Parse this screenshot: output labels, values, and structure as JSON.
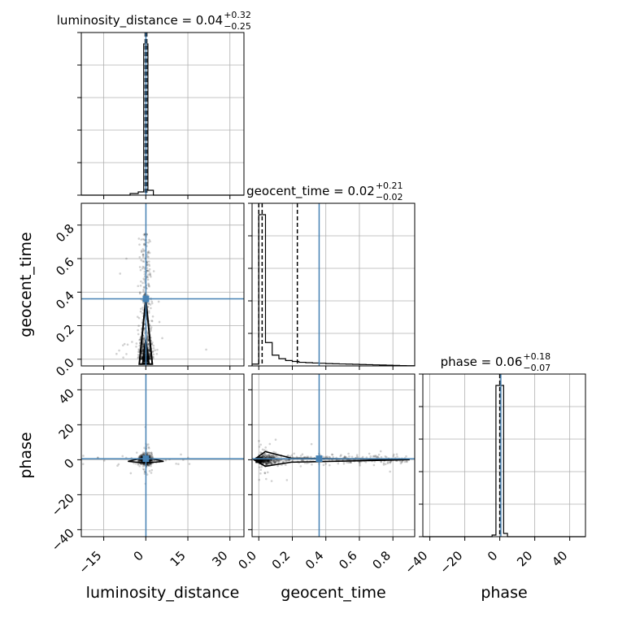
{
  "chart_data": {
    "type": "corner",
    "parameters": [
      "luminosity_distance",
      "geocent_time",
      "phase"
    ],
    "axis_labels": {
      "x": [
        "luminosity_distance",
        "geocent_time",
        "phase"
      ],
      "y": [
        "geocent_time",
        "phase"
      ]
    },
    "ranges": {
      "luminosity_distance": [
        -23,
        35
      ],
      "geocent_time": [
        -0.04,
        0.93
      ],
      "phase": [
        -44,
        49
      ]
    },
    "ticks": {
      "luminosity_distance": [
        "-15",
        "0",
        "15",
        "30"
      ],
      "geocent_time": [
        "0.0",
        "0.2",
        "0.4",
        "0.6",
        "0.8"
      ],
      "phase": [
        "-40",
        "-20",
        "0",
        "20",
        "40"
      ]
    },
    "titles": [
      {
        "param": "luminosity_distance",
        "text": "luminosity_distance = 0.04",
        "plus": "+0.32",
        "minus": "−0.25"
      },
      {
        "param": "geocent_time",
        "text": "geocent_time = 0.02",
        "plus": "+0.21",
        "minus": "−0.02"
      },
      {
        "param": "phase",
        "text": "phase = 0.06",
        "plus": "+0.18",
        "minus": "−0.07"
      }
    ],
    "quantiles": {
      "luminosity_distance": [
        -0.21,
        0.04,
        0.36
      ],
      "geocent_time": [
        0.0,
        0.02,
        0.23
      ],
      "phase": [
        -0.01,
        0.06,
        0.24
      ]
    },
    "truths": {
      "luminosity_distance": 0.04,
      "geocent_time": 0.36,
      "phase": 0.6
    },
    "histograms": {
      "luminosity_distance": {
        "bin_edges": [
          -23,
          -20.1,
          -17.2,
          -14.3,
          -11.4,
          -8.5,
          -5.6,
          -2.7,
          -0.75,
          0.75,
          2.7,
          5.6,
          8.5,
          11.4,
          14.3,
          17.2,
          20.1,
          23,
          25.9,
          28.8,
          31.7,
          35
        ],
        "counts": [
          0,
          0,
          0,
          0,
          0,
          0,
          0.01,
          0.02,
          0.93,
          0.03,
          0,
          0,
          0,
          0,
          0,
          0,
          0,
          0,
          0,
          0,
          0
        ]
      },
      "geocent_time": {
        "bin_edges": [
          -0.04,
          0.0,
          0.04,
          0.08,
          0.12,
          0.16,
          0.2,
          0.24,
          0.28,
          0.32,
          0.36,
          0.4,
          0.44,
          0.48,
          0.52,
          0.56,
          0.6,
          0.64,
          0.68,
          0.72,
          0.76,
          0.8,
          0.84,
          0.88,
          0.93
        ],
        "counts": [
          0.01,
          0.84,
          0.13,
          0.06,
          0.04,
          0.03,
          0.025,
          0.02,
          0.018,
          0.016,
          0.015,
          0.013,
          0.012,
          0.011,
          0.01,
          0.009,
          0.008,
          0.007,
          0.006,
          0.005,
          0.004,
          0.003,
          0.002,
          0.001
        ]
      },
      "phase": {
        "bin_edges": [
          -44,
          -39.6,
          -35.2,
          -30.8,
          -26.4,
          -22.0,
          -17.6,
          -13.2,
          -8.8,
          -4.4,
          -2.2,
          2.2,
          4.4,
          8.8,
          13.2,
          17.6,
          22.0,
          26.4,
          30.8,
          35.2,
          39.6,
          44,
          49
        ],
        "counts": [
          0,
          0,
          0,
          0,
          0,
          0,
          0,
          0,
          0,
          0.01,
          0.93,
          0.02,
          0,
          0,
          0,
          0,
          0,
          0,
          0,
          0,
          0,
          0
        ]
      }
    },
    "grid": true
  },
  "colors": {
    "truth": "#4682b4",
    "hist": "#000000",
    "grid": "#b0b0b0",
    "scatter": "#000000"
  }
}
